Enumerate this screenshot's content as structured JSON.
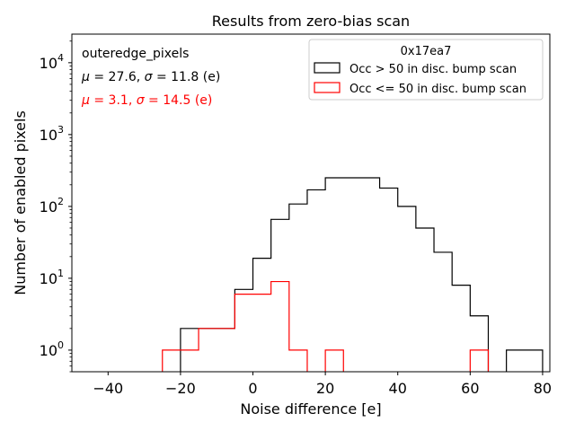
{
  "chart_data": {
    "type": "histogram",
    "title": "Results from zero-bias scan",
    "xlabel": "Noise difference [e]",
    "ylabel": "Number of enabled pixels",
    "xlim": [
      -50,
      82
    ],
    "ylim": [
      0.5,
      25000
    ],
    "yscale": "log",
    "xticks": [
      -40,
      -20,
      0,
      20,
      40,
      60,
      80
    ],
    "xtick_labels": [
      "−40",
      "−20",
      "0",
      "20",
      "40",
      "60",
      "80"
    ],
    "yticks": [
      1,
      10,
      100,
      1000,
      10000
    ],
    "ytick_labels": [
      {
        "base": "10",
        "exp": "0"
      },
      {
        "base": "10",
        "exp": "1"
      },
      {
        "base": "10",
        "exp": "2"
      },
      {
        "base": "10",
        "exp": "3"
      },
      {
        "base": "10",
        "exp": "4"
      }
    ],
    "bin_edges": [
      -50,
      -45,
      -40,
      -35,
      -30,
      -25,
      -20,
      -15,
      -10,
      -5,
      0,
      5,
      10,
      15,
      20,
      25,
      30,
      35,
      40,
      45,
      50,
      55,
      60,
      65,
      70,
      75,
      80
    ],
    "series": [
      {
        "name": "Occ > 50 in disc. bump scan",
        "color": "#000000",
        "values": [
          0,
          0,
          0,
          0,
          0,
          0,
          2,
          2,
          2,
          7,
          19,
          66,
          108,
          170,
          250,
          250,
          250,
          180,
          100,
          50,
          23,
          8,
          3,
          0,
          1,
          1
        ]
      },
      {
        "name": "Occ <= 50 in disc. bump scan",
        "color": "#ff0000",
        "values": [
          0,
          0,
          0,
          0,
          0,
          1,
          1,
          2,
          2,
          6,
          6,
          9,
          1,
          0,
          1,
          0,
          0,
          0,
          0,
          0,
          0,
          0,
          1,
          0,
          0,
          0
        ]
      }
    ],
    "legend": {
      "title": "0x17ea7",
      "location": "top-right"
    },
    "annotations": [
      {
        "text": "outeredge_pixels",
        "color": "#000000"
      },
      {
        "parts": [
          {
            "t": "μ",
            "italic": true
          },
          {
            "t": " = 27.6, "
          },
          {
            "t": "σ",
            "italic": true
          },
          {
            "t": " = 11.8 (e)"
          }
        ],
        "color": "#000000"
      },
      {
        "parts": [
          {
            "t": "μ",
            "italic": true
          },
          {
            "t": " = 3.1, "
          },
          {
            "t": "σ",
            "italic": true
          },
          {
            "t": " = 14.5 (e)"
          }
        ],
        "color": "#ff0000"
      }
    ]
  }
}
